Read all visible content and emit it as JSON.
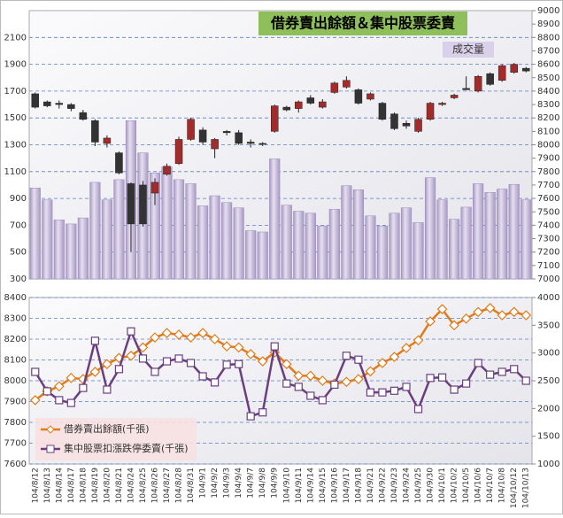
{
  "chart_data": [
    {
      "type": "candlestick",
      "title": "借券賣出餘額＆集中股票委賣",
      "annotation": "成交量",
      "ylim": [
        300,
        2300
      ],
      "yticks": [
        300,
        500,
        700,
        900,
        1100,
        1300,
        1500,
        1700,
        1900,
        2100
      ],
      "y2lim": [
        7000,
        9000
      ],
      "y2ticks": [
        7000,
        7100,
        7200,
        7300,
        7400,
        7500,
        7600,
        7700,
        7800,
        7900,
        8000,
        8100,
        8200,
        8300,
        8400,
        8500,
        8600,
        8700,
        8800,
        8900,
        9000
      ],
      "grid": true,
      "volume": {
        "color": "#c9bfdc",
        "values": [
          978,
          890,
          740,
          710,
          755,
          1020,
          890,
          1040,
          1480,
          1240,
          1090,
          1135,
          1040,
          1010,
          845,
          920,
          870,
          830,
          660,
          650,
          1195,
          850,
          805,
          790,
          695,
          820,
          995,
          965,
          770,
          695,
          790,
          830,
          720,
          1055,
          890,
          745,
          835,
          1010,
          945,
          970,
          1005,
          890
        ]
      },
      "ohlc": {
        "axis": "y2",
        "up_color": "#a52a2a",
        "down_color": "#333333",
        "open": [
          8380,
          8320,
          8310,
          8300,
          8240,
          8180,
          8010,
          7940,
          7710,
          7700,
          7640,
          7780,
          7860,
          8040,
          8110,
          7970,
          8100,
          8090,
          8020,
          8010,
          8100,
          8280,
          8270,
          8350,
          8280,
          8390,
          8430,
          8410,
          8340,
          8310,
          8230,
          8160,
          8100,
          8190,
          8300,
          8350,
          8420,
          8400,
          8530,
          8480,
          8540,
          8570
        ],
        "high": [
          8390,
          8330,
          8330,
          8310,
          8260,
          8190,
          8070,
          7950,
          7720,
          7730,
          7750,
          7860,
          8060,
          8200,
          8130,
          8050,
          8110,
          8110,
          8040,
          8020,
          8300,
          8290,
          8330,
          8370,
          8340,
          8470,
          8510,
          8420,
          8390,
          8320,
          8240,
          8180,
          8200,
          8320,
          8320,
          8380,
          8510,
          8520,
          8540,
          8600,
          8610,
          8580
        ],
        "low": [
          8270,
          8280,
          8270,
          8250,
          8180,
          7990,
          7980,
          7780,
          7200,
          7390,
          7550,
          7770,
          7850,
          8030,
          8000,
          7900,
          8070,
          8000,
          7980,
          7990,
          8090,
          8250,
          8240,
          8300,
          8270,
          8380,
          8420,
          8300,
          8330,
          8180,
          8110,
          8120,
          8090,
          8180,
          8290,
          8340,
          8410,
          8390,
          8440,
          8470,
          8530,
          8540
        ],
        "close": [
          8280,
          8290,
          8300,
          8270,
          8190,
          8020,
          8050,
          7790,
          7410,
          7410,
          7720,
          7840,
          8040,
          8190,
          8020,
          8040,
          8090,
          8010,
          8010,
          8005,
          8290,
          8260,
          8320,
          8310,
          8320,
          8460,
          8480,
          8310,
          8380,
          8190,
          8120,
          8140,
          8190,
          8310,
          8310,
          8370,
          8410,
          8510,
          8450,
          8590,
          8600,
          8550
        ]
      }
    },
    {
      "type": "line",
      "categories": [
        "104/8/12",
        "104/8/13",
        "104/8/14",
        "104/8/17",
        "104/8/18",
        "104/8/19",
        "104/8/20",
        "104/8/21",
        "104/8/24",
        "104/8/25",
        "104/8/26",
        "104/8/27",
        "104/8/28",
        "104/8/31",
        "104/9/1",
        "104/9/2",
        "104/9/3",
        "104/9/4",
        "104/9/7",
        "104/9/8",
        "104/9/9",
        "104/9/10",
        "104/9/11",
        "104/9/14",
        "104/9/15",
        "104/9/16",
        "104/9/17",
        "104/9/18",
        "104/9/21",
        "104/9/22",
        "104/9/23",
        "104/9/24",
        "104/9/25",
        "104/9/30",
        "104/10/1",
        "104/10/2",
        "104/10/5",
        "104/10/6",
        "104/10/7",
        "104/10/8",
        "104/10/12",
        "104/10/13"
      ],
      "ylim": [
        7600,
        8400
      ],
      "yticks": [
        7600,
        7700,
        7800,
        7900,
        8000,
        8100,
        8200,
        8300,
        8400
      ],
      "y2lim": [
        1000,
        4000
      ],
      "y2ticks": [
        1000,
        1500,
        2000,
        2500,
        3000,
        3500,
        4000
      ],
      "grid": true,
      "legend": "lower left",
      "series": [
        {
          "name": "借券賣出餘額(千張)",
          "color": "#e07b1a",
          "axis": "y2",
          "marker": "diamond",
          "values": [
            2150,
            2310,
            2400,
            2550,
            2530,
            2660,
            2800,
            2910,
            2950,
            3100,
            3280,
            3360,
            3330,
            3280,
            3360,
            3250,
            3120,
            3100,
            2980,
            2850,
            3010,
            2800,
            2590,
            2590,
            2500,
            2450,
            2480,
            2530,
            2670,
            2820,
            2930,
            3090,
            3230,
            3570,
            3790,
            3500,
            3620,
            3740,
            3810,
            3680,
            3740,
            3680
          ]
        },
        {
          "name": "集中股票扣漲跌停委賣(千張)",
          "color": "#6b3f7f",
          "axis": "y2",
          "marker": "square",
          "values": [
            2660,
            2310,
            2150,
            2100,
            2370,
            3220,
            2340,
            2710,
            3390,
            2900,
            2660,
            2850,
            2900,
            2820,
            2580,
            2470,
            2790,
            2800,
            1860,
            1930,
            3120,
            2450,
            2390,
            2230,
            2150,
            2430,
            2950,
            2880,
            2290,
            2290,
            2320,
            2390,
            1990,
            2550,
            2560,
            2340,
            2450,
            2820,
            2610,
            2660,
            2710,
            2500
          ]
        }
      ]
    }
  ]
}
